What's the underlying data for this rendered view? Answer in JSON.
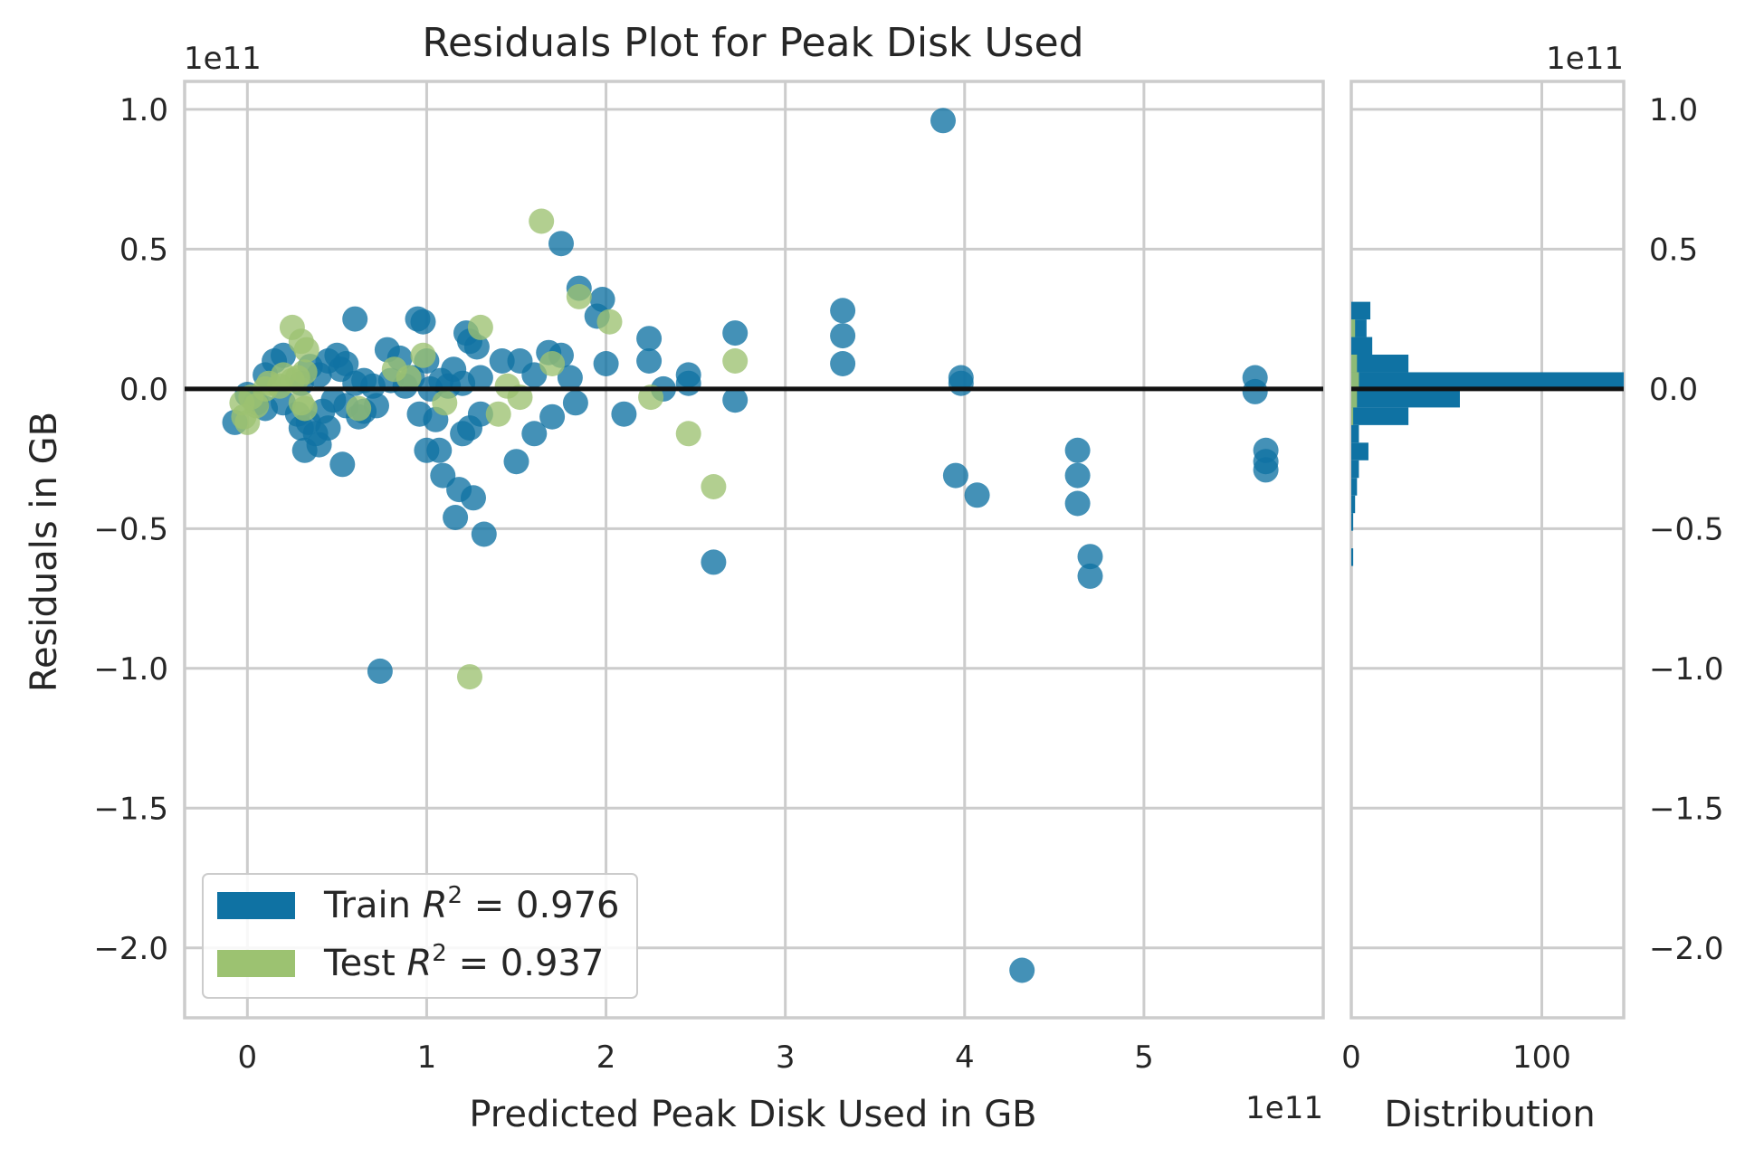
{
  "chart_data": {
    "type": "scatter",
    "title": "Residuals Plot for Peak Disk Used",
    "xlabel": "Predicted Peak Disk Used in GB",
    "ylabel": "Residuals in GB",
    "x_offset_text": "1e11",
    "y_offset_text": "1e11",
    "hist_offset_text": "1e11",
    "hist_xlabel": "Distribution",
    "xlim": [
      -0.35,
      6.0
    ],
    "ylim": [
      -2.25,
      1.1
    ],
    "xticks": [
      0,
      1,
      2,
      3,
      4,
      5
    ],
    "xtick_labels": [
      "0",
      "1",
      "2",
      "3",
      "4",
      "5"
    ],
    "yticks": [
      1.0,
      0.5,
      0.0,
      -0.5,
      -1.0,
      -1.5,
      -2.0
    ],
    "ytick_labels": [
      "1.0",
      "0.5",
      "0.0",
      "−0.5",
      "−1.0",
      "−1.5",
      "−2.0"
    ],
    "hist_xlim": [
      0,
      143
    ],
    "hist_xticks": [
      0,
      100
    ],
    "hist_xtick_labels": [
      "0",
      "100"
    ],
    "grid": true,
    "legend_placement": "lower-left",
    "zero_line": 0.0,
    "colors": {
      "train": "#0f72a3",
      "test": "#9cc271",
      "zero_line": "#111111",
      "grid": "#cccccc"
    },
    "series": [
      {
        "name": "Train",
        "legend_label": "Train",
        "r2_text": "= 0.976",
        "points": [
          [
            3.88,
            0.96
          ],
          [
            1.75,
            0.52
          ],
          [
            1.85,
            0.36
          ],
          [
            1.98,
            0.32
          ],
          [
            1.95,
            0.26
          ],
          [
            2.72,
            0.2
          ],
          [
            3.32,
            0.28
          ],
          [
            3.32,
            0.19
          ],
          [
            3.32,
            0.09
          ],
          [
            2.24,
            0.18
          ],
          [
            2.24,
            0.1
          ],
          [
            2.0,
            0.09
          ],
          [
            0.6,
            0.25
          ],
          [
            0.95,
            0.25
          ],
          [
            0.98,
            0.24
          ],
          [
            1.22,
            0.2
          ],
          [
            1.24,
            0.17
          ],
          [
            1.28,
            0.15
          ],
          [
            0.78,
            0.14
          ],
          [
            0.85,
            0.11
          ],
          [
            1.0,
            0.1
          ],
          [
            1.15,
            0.07
          ],
          [
            1.3,
            0.04
          ],
          [
            1.42,
            0.1
          ],
          [
            1.52,
            0.1
          ],
          [
            1.6,
            0.05
          ],
          [
            1.68,
            0.13
          ],
          [
            1.75,
            0.12
          ],
          [
            1.8,
            0.04
          ],
          [
            2.46,
            0.05
          ],
          [
            2.46,
            0.02
          ],
          [
            2.32,
            0.0
          ],
          [
            3.98,
            0.04
          ],
          [
            3.98,
            0.02
          ],
          [
            5.62,
            0.04
          ],
          [
            5.62,
            -0.01
          ],
          [
            0.1,
            0.05
          ],
          [
            0.15,
            0.1
          ],
          [
            0.2,
            0.12
          ],
          [
            0.3,
            0.02
          ],
          [
            0.35,
            0.08
          ],
          [
            0.4,
            0.05
          ],
          [
            0.45,
            0.1
          ],
          [
            0.5,
            0.12
          ],
          [
            0.52,
            0.07
          ],
          [
            0.55,
            0.09
          ],
          [
            0.6,
            0.02
          ],
          [
            0.65,
            0.03
          ],
          [
            0.7,
            0.01
          ],
          [
            0.8,
            0.03
          ],
          [
            0.88,
            0.01
          ],
          [
            0.92,
            0.04
          ],
          [
            1.02,
            0.0
          ],
          [
            1.08,
            0.03
          ],
          [
            1.12,
            0.01
          ],
          [
            1.2,
            0.02
          ],
          [
            0.0,
            -0.02
          ],
          [
            0.05,
            -0.05
          ],
          [
            -0.07,
            -0.12
          ],
          [
            0.1,
            -0.07
          ],
          [
            0.2,
            -0.05
          ],
          [
            0.28,
            -0.09
          ],
          [
            0.3,
            -0.14
          ],
          [
            0.34,
            -0.12
          ],
          [
            0.38,
            -0.16
          ],
          [
            0.42,
            -0.08
          ],
          [
            0.45,
            -0.14
          ],
          [
            0.48,
            -0.04
          ],
          [
            0.55,
            -0.06
          ],
          [
            0.62,
            -0.1
          ],
          [
            0.65,
            -0.08
          ],
          [
            0.72,
            -0.06
          ],
          [
            0.32,
            -0.22
          ],
          [
            0.4,
            -0.2
          ],
          [
            0.53,
            -0.27
          ],
          [
            0.96,
            -0.09
          ],
          [
            1.05,
            -0.11
          ],
          [
            1.0,
            -0.22
          ],
          [
            1.07,
            -0.22
          ],
          [
            1.09,
            -0.31
          ],
          [
            1.18,
            -0.36
          ],
          [
            1.16,
            -0.46
          ],
          [
            1.26,
            -0.39
          ],
          [
            1.32,
            -0.52
          ],
          [
            1.2,
            -0.16
          ],
          [
            1.24,
            -0.14
          ],
          [
            1.3,
            -0.09
          ],
          [
            1.5,
            -0.26
          ],
          [
            1.6,
            -0.16
          ],
          [
            1.7,
            -0.1
          ],
          [
            1.83,
            -0.05
          ],
          [
            2.1,
            -0.09
          ],
          [
            2.72,
            -0.04
          ],
          [
            2.6,
            -0.62
          ],
          [
            3.95,
            -0.31
          ],
          [
            4.07,
            -0.38
          ],
          [
            4.63,
            -0.22
          ],
          [
            4.63,
            -0.31
          ],
          [
            4.63,
            -0.41
          ],
          [
            4.7,
            -0.6
          ],
          [
            4.7,
            -0.67
          ],
          [
            5.68,
            -0.22
          ],
          [
            5.68,
            -0.26
          ],
          [
            5.68,
            -0.29
          ],
          [
            0.74,
            -1.01
          ],
          [
            4.32,
            -2.08
          ]
        ]
      },
      {
        "name": "Test",
        "legend_label": "Test",
        "r2_text": "= 0.937",
        "points": [
          [
            1.64,
            0.6
          ],
          [
            1.85,
            0.33
          ],
          [
            2.02,
            0.24
          ],
          [
            2.72,
            0.1
          ],
          [
            1.3,
            0.22
          ],
          [
            0.25,
            0.22
          ],
          [
            0.3,
            0.17
          ],
          [
            0.33,
            0.14
          ],
          [
            0.98,
            0.12
          ],
          [
            1.7,
            0.09
          ],
          [
            0.82,
            0.07
          ],
          [
            0.2,
            0.05
          ],
          [
            0.28,
            0.04
          ],
          [
            0.32,
            0.06
          ],
          [
            0.12,
            0.02
          ],
          [
            0.18,
            0.01
          ],
          [
            0.25,
            0.03
          ],
          [
            0.02,
            -0.03
          ],
          [
            -0.03,
            -0.05
          ],
          [
            0.05,
            -0.06
          ],
          [
            -0.02,
            -0.1
          ],
          [
            0.0,
            -0.12
          ],
          [
            0.1,
            0.0
          ],
          [
            0.3,
            -0.05
          ],
          [
            0.32,
            -0.07
          ],
          [
            0.62,
            -0.07
          ],
          [
            0.9,
            0.04
          ],
          [
            1.1,
            -0.05
          ],
          [
            1.45,
            0.01
          ],
          [
            1.52,
            -0.03
          ],
          [
            1.4,
            -0.09
          ],
          [
            2.25,
            -0.03
          ],
          [
            2.46,
            -0.16
          ],
          [
            2.6,
            -0.35
          ],
          [
            1.24,
            -1.03
          ]
        ]
      }
    ],
    "histogram": {
      "bin_width": 0.063,
      "train": [
        [
          0.28,
          10
        ],
        [
          0.217,
          8
        ],
        [
          0.154,
          11
        ],
        [
          0.091,
          30
        ],
        [
          0.028,
          143
        ],
        [
          -0.035,
          57
        ],
        [
          -0.098,
          30
        ],
        [
          -0.161,
          4
        ],
        [
          -0.224,
          9
        ],
        [
          -0.287,
          4
        ],
        [
          -0.35,
          3
        ],
        [
          -0.413,
          2
        ],
        [
          -0.476,
          1
        ],
        [
          -0.602,
          1
        ]
      ],
      "test": [
        [
          0.217,
          2
        ],
        [
          0.091,
          3
        ],
        [
          0.028,
          4
        ],
        [
          -0.035,
          3
        ],
        [
          -0.098,
          1
        ]
      ]
    }
  }
}
